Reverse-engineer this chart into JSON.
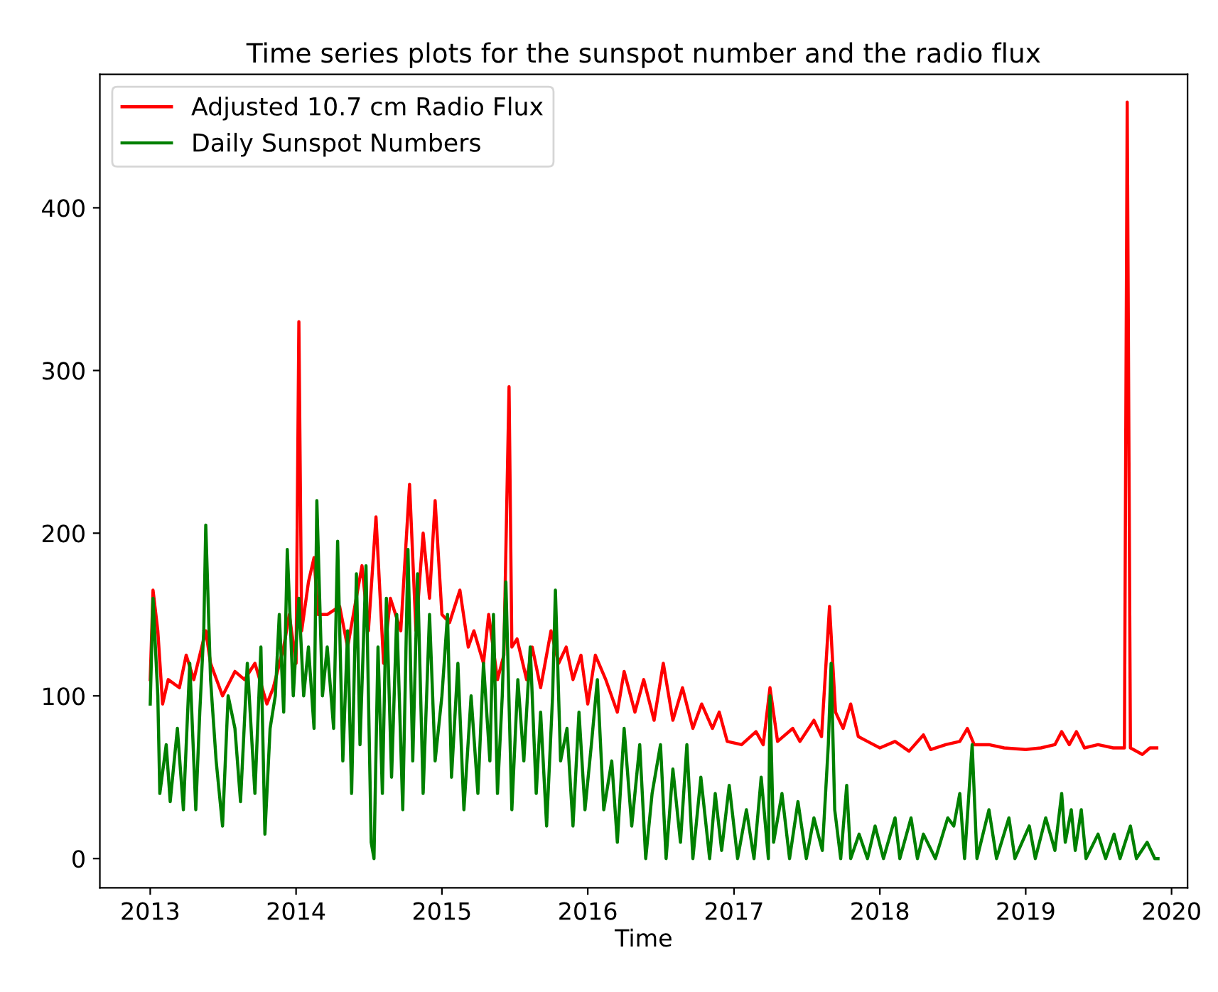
{
  "chart_data": {
    "type": "line",
    "title": "Time series plots for the sunspot number and the radio flux",
    "xlabel": "Time",
    "xlim": [
      "2012-08-28",
      "2020-02-10"
    ],
    "ylim": [
      -18,
      482
    ],
    "xticks": [
      {
        "value": "2013",
        "label": "2013"
      },
      {
        "value": "2014",
        "label": "2014"
      },
      {
        "value": "2015",
        "label": "2015"
      },
      {
        "value": "2016",
        "label": "2016"
      },
      {
        "value": "2017",
        "label": "2017"
      },
      {
        "value": "2018",
        "label": "2018"
      },
      {
        "value": "2019",
        "label": "2019"
      },
      {
        "value": "2020",
        "label": "2020"
      }
    ],
    "yticks": [
      0,
      100,
      200,
      300,
      400
    ],
    "grid": false,
    "legend": "top left",
    "series": [
      {
        "name": "Adjusted 10.7 cm Radio Flux",
        "color": "#ff0000",
        "x": [
          "2013-01-01",
          "2013-01-08",
          "2013-01-20",
          "2013-02-01",
          "2013-02-15",
          "2013-03-15",
          "2013-04-01",
          "2013-04-20",
          "2013-05-20",
          "2013-06-01",
          "2013-07-01",
          "2013-08-01",
          "2013-08-25",
          "2013-09-20",
          "2013-10-20",
          "2013-11-05",
          "2013-12-01",
          "2013-12-15",
          "2014-01-01",
          "2014-01-08",
          "2014-01-15",
          "2014-02-01",
          "2014-02-15",
          "2014-02-25",
          "2014-03-20",
          "2014-04-20",
          "2014-05-10",
          "2014-06-15",
          "2014-07-01",
          "2014-07-20",
          "2014-08-08",
          "2014-08-25",
          "2014-09-20",
          "2014-10-12",
          "2014-10-28",
          "2014-11-15",
          "2014-12-01",
          "2014-12-15",
          "2015-01-01",
          "2015-01-20",
          "2015-02-15",
          "2015-03-08",
          "2015-03-22",
          "2015-04-15",
          "2015-04-28",
          "2015-05-20",
          "2015-06-05",
          "2015-06-18",
          "2015-06-25",
          "2015-07-08",
          "2015-08-01",
          "2015-08-15",
          "2015-09-05",
          "2015-10-01",
          "2015-10-20",
          "2015-11-08",
          "2015-11-25",
          "2015-12-15",
          "2016-01-01",
          "2016-01-20",
          "2016-02-15",
          "2016-03-15",
          "2016-04-01",
          "2016-04-28",
          "2016-05-20",
          "2016-06-15",
          "2016-07-08",
          "2016-08-01",
          "2016-08-25",
          "2016-09-20",
          "2016-10-12",
          "2016-11-08",
          "2016-11-25",
          "2016-12-15",
          "2017-01-20",
          "2017-02-25",
          "2017-03-15",
          "2017-04-01",
          "2017-04-20",
          "2017-05-28",
          "2017-06-15",
          "2017-07-20",
          "2017-08-08",
          "2017-08-28",
          "2017-09-12",
          "2017-10-01",
          "2017-10-20",
          "2017-11-08",
          "2017-12-01",
          "2018-01-01",
          "2018-02-08",
          "2018-03-15",
          "2018-04-20",
          "2018-05-08",
          "2018-06-15",
          "2018-07-20",
          "2018-08-08",
          "2018-08-25",
          "2018-10-01",
          "2018-11-08",
          "2019-01-01",
          "2019-02-08",
          "2019-03-15",
          "2019-04-01",
          "2019-04-20",
          "2019-05-08",
          "2019-05-28",
          "2019-07-01",
          "2019-08-08",
          "2019-09-05",
          "2019-09-12",
          "2019-09-20",
          "2019-10-20",
          "2019-11-08",
          "2019-11-25"
        ],
        "values": [
          110,
          165,
          140,
          95,
          110,
          105,
          125,
          110,
          140,
          120,
          100,
          115,
          110,
          120,
          95,
          105,
          130,
          150,
          120,
          330,
          140,
          170,
          185,
          150,
          150,
          155,
          130,
          180,
          140,
          210,
          120,
          160,
          140,
          230,
          140,
          200,
          160,
          220,
          150,
          145,
          165,
          130,
          140,
          120,
          150,
          110,
          125,
          290,
          130,
          135,
          110,
          130,
          105,
          140,
          120,
          130,
          110,
          125,
          95,
          125,
          110,
          90,
          115,
          90,
          110,
          85,
          120,
          85,
          105,
          80,
          95,
          80,
          90,
          72,
          70,
          78,
          70,
          105,
          72,
          80,
          72,
          85,
          75,
          155,
          90,
          80,
          95,
          75,
          72,
          68,
          72,
          66,
          76,
          67,
          70,
          72,
          80,
          70,
          70,
          68,
          67,
          68,
          70,
          78,
          70,
          78,
          68,
          70,
          68,
          68,
          465,
          68,
          64,
          68,
          68
        ]
      },
      {
        "name": "Daily Sunspot Numbers",
        "color": "#008000",
        "x": [
          "2013-01-01",
          "2013-01-08",
          "2013-01-20",
          "2013-01-25",
          "2013-02-10",
          "2013-02-20",
          "2013-03-10",
          "2013-03-25",
          "2013-04-10",
          "2013-04-25",
          "2013-05-05",
          "2013-05-15",
          "2013-05-20",
          "2013-06-01",
          "2013-06-15",
          "2013-07-01",
          "2013-07-15",
          "2013-08-01",
          "2013-08-15",
          "2013-09-01",
          "2013-09-20",
          "2013-10-05",
          "2013-10-15",
          "2013-10-28",
          "2013-11-10",
          "2013-11-20",
          "2013-12-01",
          "2013-12-10",
          "2013-12-25",
          "2014-01-08",
          "2014-01-20",
          "2014-02-01",
          "2014-02-15",
          "2014-02-22",
          "2014-03-08",
          "2014-03-20",
          "2014-04-05",
          "2014-04-15",
          "2014-04-28",
          "2014-05-10",
          "2014-05-20",
          "2014-06-01",
          "2014-06-10",
          "2014-06-25",
          "2014-07-08",
          "2014-07-15",
          "2014-07-25",
          "2014-08-05",
          "2014-08-15",
          "2014-08-28",
          "2014-09-10",
          "2014-09-25",
          "2014-10-08",
          "2014-10-20",
          "2014-11-01",
          "2014-11-15",
          "2014-12-01",
          "2014-12-15",
          "2015-01-01",
          "2015-01-15",
          "2015-01-25",
          "2015-02-10",
          "2015-02-25",
          "2015-03-15",
          "2015-04-01",
          "2015-04-15",
          "2015-05-01",
          "2015-05-10",
          "2015-05-20",
          "2015-06-01",
          "2015-06-10",
          "2015-06-25",
          "2015-07-10",
          "2015-07-25",
          "2015-08-10",
          "2015-08-25",
          "2015-09-05",
          "2015-09-20",
          "2015-10-05",
          "2015-10-12",
          "2015-10-25",
          "2015-11-10",
          "2015-11-25",
          "2015-12-10",
          "2015-12-25",
          "2016-01-10",
          "2016-01-25",
          "2016-02-10",
          "2016-03-01",
          "2016-03-15",
          "2016-04-01",
          "2016-04-20",
          "2016-05-10",
          "2016-05-25",
          "2016-06-10",
          "2016-07-01",
          "2016-07-15",
          "2016-08-01",
          "2016-08-20",
          "2016-09-05",
          "2016-09-20",
          "2016-10-10",
          "2016-11-01",
          "2016-11-15",
          "2016-12-01",
          "2016-12-20",
          "2017-01-10",
          "2017-02-01",
          "2017-02-20",
          "2017-03-10",
          "2017-03-28",
          "2017-04-01",
          "2017-04-10",
          "2017-05-01",
          "2017-05-20",
          "2017-06-10",
          "2017-07-01",
          "2017-07-20",
          "2017-08-10",
          "2017-08-25",
          "2017-09-01",
          "2017-09-10",
          "2017-09-25",
          "2017-10-10",
          "2017-10-20",
          "2017-11-10",
          "2017-12-01",
          "2017-12-20",
          "2018-01-10",
          "2018-02-08",
          "2018-02-20",
          "2018-03-20",
          "2018-04-05",
          "2018-04-20",
          "2018-05-20",
          "2018-06-20",
          "2018-07-05",
          "2018-07-20",
          "2018-08-01",
          "2018-08-20",
          "2018-09-01",
          "2018-10-01",
          "2018-10-20",
          "2018-11-20",
          "2018-12-05",
          "2019-01-10",
          "2019-01-25",
          "2019-02-20",
          "2019-03-15",
          "2019-04-01",
          "2019-04-10",
          "2019-04-25",
          "2019-05-05",
          "2019-05-20",
          "2019-06-01",
          "2019-07-01",
          "2019-07-20",
          "2019-08-10",
          "2019-08-25",
          "2019-09-20",
          "2019-10-05",
          "2019-11-01",
          "2019-11-20",
          "2019-11-28"
        ],
        "values": [
          95,
          160,
          100,
          40,
          70,
          35,
          80,
          30,
          120,
          30,
          90,
          140,
          205,
          110,
          60,
          20,
          100,
          80,
          35,
          120,
          40,
          130,
          15,
          80,
          100,
          150,
          90,
          190,
          100,
          160,
          100,
          130,
          80,
          220,
          100,
          130,
          80,
          195,
          60,
          140,
          40,
          175,
          70,
          180,
          10,
          0,
          130,
          40,
          160,
          50,
          150,
          30,
          190,
          60,
          175,
          40,
          150,
          60,
          100,
          150,
          50,
          120,
          30,
          100,
          40,
          120,
          60,
          150,
          40,
          100,
          170,
          30,
          110,
          60,
          130,
          40,
          90,
          20,
          100,
          165,
          60,
          80,
          20,
          90,
          30,
          70,
          110,
          30,
          60,
          10,
          80,
          20,
          70,
          0,
          40,
          70,
          0,
          55,
          10,
          70,
          0,
          50,
          0,
          40,
          5,
          45,
          0,
          30,
          0,
          50,
          0,
          100,
          10,
          40,
          0,
          35,
          0,
          25,
          5,
          70,
          120,
          30,
          0,
          45,
          0,
          15,
          0,
          20,
          0,
          25,
          0,
          25,
          0,
          15,
          0,
          25,
          20,
          40,
          0,
          70,
          0,
          30,
          0,
          25,
          0,
          20,
          0,
          25,
          5,
          40,
          10,
          30,
          5,
          30,
          0,
          15,
          0,
          15,
          0,
          20,
          0,
          10,
          0,
          0
        ]
      }
    ]
  }
}
